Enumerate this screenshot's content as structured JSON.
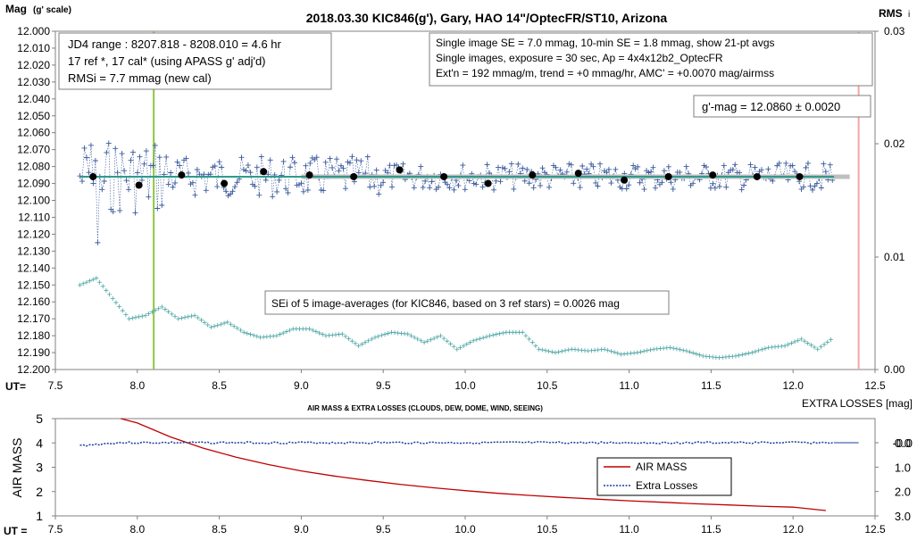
{
  "top_chart": {
    "title": "2018.03.30  KIC846(g'),  Gary, HAO 14\"/OptecFR/ST10,  Arizona",
    "y_label_main": "Mag",
    "y_label_sub": "(g' scale)",
    "y2_label": "RMS",
    "y2_label_sub": "i",
    "x_label": "UT=",
    "y_ticks": [
      "12.000",
      "12.010",
      "12.020",
      "12.030",
      "12.040",
      "12.050",
      "12.060",
      "12.070",
      "12.080",
      "12.090",
      "12.100",
      "12.110",
      "12.120",
      "12.130",
      "12.140",
      "12.150",
      "12.160",
      "12.170",
      "12.180",
      "12.190",
      "12.200"
    ],
    "y2_ticks": [
      "0.03",
      "0.02",
      "0.01",
      "0.00"
    ],
    "x_ticks": [
      "7.5",
      "8.0",
      "8.5",
      "9.0",
      "9.5",
      "10.0",
      "10.5",
      "11.0",
      "11.5",
      "12.0",
      "12.5"
    ],
    "info_left": [
      "JD4 range : 8207.818 - 8208.010 = 4.6  hr",
      "17 ref *, 17 cal* (using APASS g' adj'd)",
      "RMSi = 7.7 mmag (new cal)"
    ],
    "info_right": [
      "Single image SE = 7.0 mmag, 10-min SE = 1.8 mmag, show  21-pt avgs",
      "Single images, exposure = 30 sec, Ap = 4x4x12b2_OptecFR",
      "Ext'n = 192 mmag/m, trend =  +0 mmag/hr, AMC' = +0.0070 mag/airmss"
    ],
    "gmag_label": "g'-mag = 12.0860 ± 0.0020",
    "sei_label": "SEi of 5 image-averages (for KIC846, based on 3 ref stars) = 0.0026  mag",
    "colors": {
      "scatter": "#3a5a9b",
      "avg": "#000000",
      "fit": "#2e9b8b",
      "rms": "#4aa3a3",
      "green_line": "#8cc63f",
      "pink_line": "#f4a6a6",
      "gray_band": "#bfbfbf"
    }
  },
  "bottom_chart": {
    "title": "AIR MASS & EXTRA LOSSES (CLOUDS, DEW, DOME, WIND, SEEING)",
    "y_label": "AIR MASS",
    "y2_label": "EXTRA LOSSES [mag]",
    "x_label": "UT =",
    "y_ticks": [
      "5",
      "4",
      "3",
      "2",
      "1"
    ],
    "y2_ticks": [
      "0.0",
      "1.0",
      "2.0",
      "3.0",
      "-0.0"
    ],
    "x_ticks": [
      "7.5",
      "8.0",
      "8.5",
      "9.0",
      "9.5",
      "10.0",
      "10.5",
      "11.0",
      "11.5",
      "12.0",
      "12.5"
    ],
    "legend": [
      "AIR MASS",
      "Extra Losses"
    ],
    "colors": {
      "airmass": "#c00000",
      "losses": "#1f3c99"
    }
  },
  "chart_data": [
    {
      "type": "scatter",
      "title": "2018.03.30  KIC846(g'),  Gary, HAO 14\"/OptecFR/ST10,  Arizona",
      "xlabel": "UT=",
      "ylabel": "Mag (g' scale)",
      "xlim": [
        7.5,
        12.5
      ],
      "ylim": [
        12.2,
        12.0
      ],
      "y2lim": [
        0.0,
        0.03
      ],
      "grid": false,
      "series": [
        {
          "x": [
            7.73,
            8.01,
            8.27,
            8.53,
            8.77,
            9.05,
            9.32,
            9.6,
            9.87,
            10.14,
            10.41,
            10.69,
            10.97,
            11.24,
            11.51,
            11.78,
            12.04
          ],
          "values": [
            12.086,
            12.091,
            12.085,
            12.09,
            12.083,
            12.085,
            12.086,
            12.082,
            12.086,
            12.09,
            12.085,
            12.084,
            12.088,
            12.086,
            12.085,
            12.086,
            12.086
          ]
        }
      ],
      "fit_line": {
        "x": [
          7.65,
          12.25
        ],
        "values": [
          12.086,
          12.086
        ]
      },
      "vertical_markers": [
        8.1,
        12.4
      ],
      "rms_points": {
        "x": [
          7.65,
          7.75,
          7.85,
          7.95,
          8.05,
          8.15,
          8.25,
          8.35,
          8.45,
          8.55,
          8.65,
          8.75,
          8.85,
          8.95,
          9.05,
          9.15,
          9.25,
          9.35,
          9.45,
          9.55,
          9.65,
          9.75,
          9.85,
          9.95,
          10.05,
          10.15,
          10.25,
          10.35,
          10.45,
          10.55,
          10.65,
          10.75,
          10.85,
          10.95,
          11.05,
          11.15,
          11.25,
          11.35,
          11.45,
          11.55,
          11.65,
          11.75,
          11.85,
          11.95,
          12.05,
          12.15,
          12.25
        ],
        "values": [
          12.15,
          12.146,
          12.158,
          12.17,
          12.168,
          12.163,
          12.17,
          12.168,
          12.175,
          12.172,
          12.178,
          12.181,
          12.18,
          12.176,
          12.176,
          12.18,
          12.179,
          12.186,
          12.181,
          12.178,
          12.179,
          12.184,
          12.18,
          12.188,
          12.183,
          12.18,
          12.178,
          12.178,
          12.188,
          12.19,
          12.188,
          12.189,
          12.188,
          12.191,
          12.19,
          12.188,
          12.187,
          12.189,
          12.192,
          12.193,
          12.192,
          12.19,
          12.187,
          12.186,
          12.182,
          12.188,
          12.181
        ]
      }
    },
    {
      "type": "line",
      "title": "AIR MASS & EXTRA LOSSES (CLOUDS, DEW, DOME, WIND, SEEING)",
      "xlabel": "UT =",
      "ylabel": "AIR MASS",
      "y2label": "EXTRA LOSSES [mag]",
      "xlim": [
        7.5,
        12.5
      ],
      "ylim": [
        1,
        5
      ],
      "y2lim": [
        3.0,
        -0.0
      ],
      "legend_position": "right",
      "series": [
        {
          "name": "AIR MASS",
          "x": [
            7.9,
            8.0,
            8.2,
            8.4,
            8.6,
            8.8,
            9.0,
            9.2,
            9.4,
            9.6,
            9.8,
            10.0,
            10.2,
            10.4,
            10.6,
            10.8,
            11.0,
            11.2,
            11.4,
            11.6,
            11.8,
            12.0,
            12.2
          ],
          "values": [
            5.0,
            4.82,
            4.25,
            3.79,
            3.42,
            3.11,
            2.85,
            2.64,
            2.46,
            2.3,
            2.16,
            2.04,
            1.93,
            1.84,
            1.76,
            1.69,
            1.62,
            1.56,
            1.5,
            1.45,
            1.4,
            1.36,
            1.22
          ]
        },
        {
          "name": "Extra Losses",
          "x": [
            7.65,
            7.75,
            7.85,
            8.0,
            8.5,
            9.0,
            9.5,
            10.0,
            10.5,
            11.0,
            11.5,
            12.0,
            12.25
          ],
          "values": [
            0.1,
            0.05,
            0.0,
            0.0,
            0.0,
            0.0,
            0.0,
            0.0,
            0.0,
            0.0,
            0.0,
            0.0,
            0.0
          ]
        }
      ]
    }
  ]
}
